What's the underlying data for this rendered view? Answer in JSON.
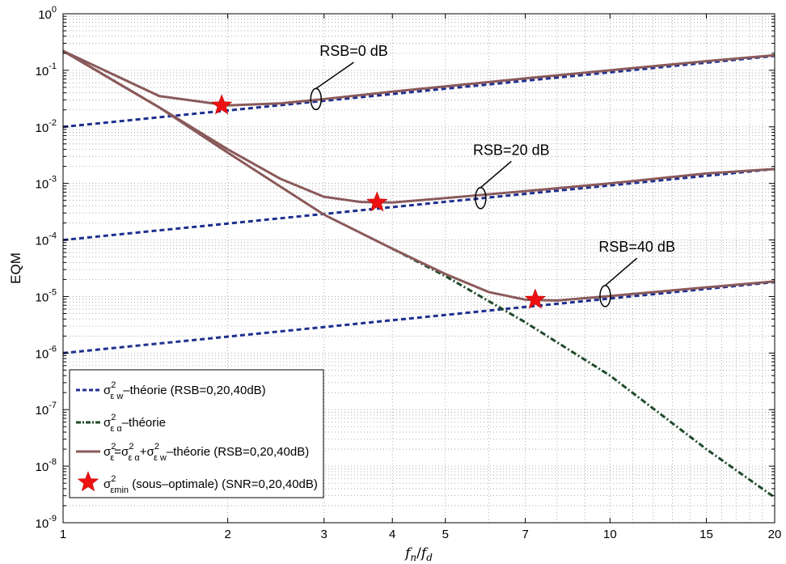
{
  "chart_data": {
    "type": "line",
    "xscale": "log",
    "yscale": "log",
    "xlim": [
      1,
      20
    ],
    "ylim": [
      1e-09,
      1
    ],
    "grid": true,
    "legend_position": "bottom-left",
    "xlabel": "f_n/f_d",
    "xlabel_main": "f",
    "xlabel_sub1": "n",
    "xlabel_slash": "/",
    "xlabel_sub2": "d",
    "ylabel": "EQM",
    "xticks": [
      1,
      2,
      3,
      4,
      5,
      7,
      10,
      15,
      20
    ],
    "xtick_labels": [
      "1",
      "2",
      "3",
      "4",
      "5",
      "7",
      "10",
      "15",
      "20"
    ],
    "ytick_exponents": [
      "0",
      "-1",
      "-2",
      "-3",
      "-4",
      "-5",
      "-6",
      "-7",
      "-8",
      "-9"
    ],
    "ytick_base": "10",
    "colors": {
      "theory_w": "#1f2f8f",
      "theory_alpha": "#1f4a2a",
      "total": "#8a5a5a",
      "star": "#ee1111"
    },
    "series": [
      {
        "name": "σ²εw–théorie (RSB=0,20,40dB)",
        "style": "dashed",
        "group": "w",
        "x": [
          1,
          20
        ],
        "y": [
          0.01,
          0.18
        ]
      },
      {
        "name": "σ²εw–théorie (RSB=0,20,40dB)",
        "style": "dashed",
        "group": "w",
        "x": [
          1,
          20
        ],
        "y": [
          0.0001,
          0.0018
        ]
      },
      {
        "name": "σ²εw–théorie (RSB=0,20,40dB)",
        "style": "dashed",
        "group": "w",
        "x": [
          1,
          20
        ],
        "y": [
          1e-06,
          1.8e-05
        ]
      },
      {
        "name": "σ²εα–théorie",
        "style": "dashdot",
        "group": "alpha",
        "x": [
          4,
          5,
          7,
          10,
          15,
          20
        ],
        "y": [
          7e-05,
          2.3e-05,
          3.5e-06,
          4e-07,
          2e-08,
          2.8e-09
        ]
      },
      {
        "name": "σ²ε=σ²εα+σ²εw–théorie (RSB=0,20,40dB)",
        "style": "solid",
        "group": "total",
        "x": [
          1,
          1.5,
          2,
          2.5,
          3,
          4,
          5,
          7,
          10,
          15,
          20
        ],
        "y": [
          0.22,
          0.035,
          0.024,
          0.026,
          0.031,
          0.042,
          0.052,
          0.072,
          0.1,
          0.145,
          0.185
        ]
      },
      {
        "name": "σ²ε=σ²εα+σ²εw–théorie (RSB=0,20,40dB)",
        "style": "solid",
        "group": "total",
        "x": [
          1,
          1.5,
          2,
          2.5,
          3,
          3.5,
          4,
          5,
          7,
          10,
          15,
          20
        ],
        "y": [
          0.22,
          0.022,
          0.004,
          0.0012,
          0.00058,
          0.00047,
          0.00046,
          0.00055,
          0.00073,
          0.001,
          0.0015,
          0.0018
        ]
      },
      {
        "name": "σ²ε=σ²εα+σ²εw–théorie (RSB=0,20,40dB)",
        "style": "solid",
        "group": "total",
        "x": [
          1,
          1.5,
          2,
          3,
          4,
          5,
          6,
          7,
          8,
          10,
          15,
          20
        ],
        "y": [
          0.22,
          0.022,
          0.0035,
          0.00028,
          7e-05,
          2.5e-05,
          1.2e-05,
          8.8e-06,
          8.5e-06,
          1.02e-05,
          1.45e-05,
          1.85e-05
        ]
      }
    ],
    "stars": [
      {
        "x": 1.95,
        "y": 0.024
      },
      {
        "x": 3.75,
        "y": 0.00046
      },
      {
        "x": 7.3,
        "y": 8.8e-06
      }
    ],
    "annotations": [
      {
        "text": "RSB=0 dB",
        "ellipse_x": 2.9,
        "ellipse_y": 0.031,
        "label_x": 3.4,
        "label_y": 0.18
      },
      {
        "text": "RSB=20 dB",
        "ellipse_x": 5.8,
        "ellipse_y": 0.00055,
        "label_x": 6.6,
        "label_y": 0.0032
      },
      {
        "text": "RSB=40 dB",
        "ellipse_x": 9.8,
        "ellipse_y": 1.02e-05,
        "label_x": 11.2,
        "label_y": 6.2e-05
      }
    ],
    "legend": [
      {
        "style": "dashed",
        "sym": "σ",
        "sup": "2",
        "sub": "ε w",
        "rest": "–théorie (RSB=0,20,40dB)"
      },
      {
        "style": "dashdot",
        "sym": "σ",
        "sup": "2",
        "sub": "ε α",
        "rest": "–théorie"
      },
      {
        "style": "solid",
        "sym": "σ",
        "sup": "2",
        "sub": "ε",
        "rest": "=σ²εα+σ²εw–théorie (RSB=0,20,40dB)",
        "parts": [
          {
            "t": "σ"
          },
          {
            "t": "2",
            "k": "sup"
          },
          {
            "t": "ε",
            "k": "sub"
          },
          {
            "t": "=σ"
          },
          {
            "t": "2",
            "k": "sup"
          },
          {
            "t": "ε α",
            "k": "sub"
          },
          {
            "t": "+σ"
          },
          {
            "t": "2",
            "k": "sup"
          },
          {
            "t": "ε w",
            "k": "sub"
          },
          {
            "t": "–théorie (RSB=0,20,40dB)"
          }
        ]
      },
      {
        "style": "star",
        "sym": "σ",
        "sup": "2",
        "sub": "εmin",
        "rest": " (sous–optimale) (SNR=0,20,40dB)"
      }
    ]
  }
}
